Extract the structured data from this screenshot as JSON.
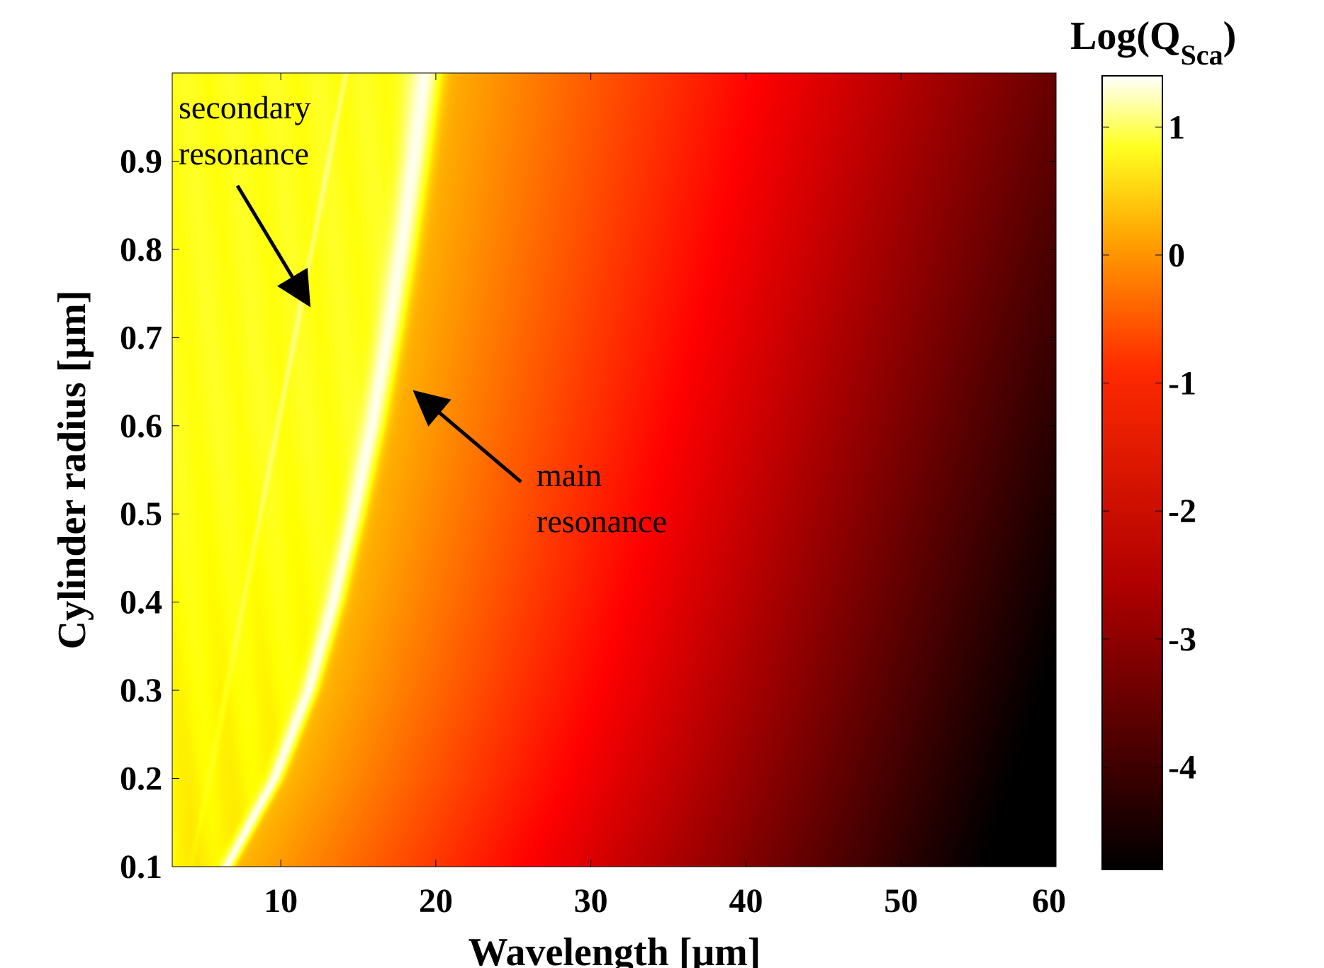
{
  "chart_data": {
    "type": "heatmap",
    "title": "",
    "xlabel": "Wavelength [μm]",
    "ylabel": "Cylinder radius [μm]",
    "xlim": [
      3,
      60
    ],
    "ylim": [
      0.1,
      1.0
    ],
    "xticks": [
      10,
      20,
      30,
      40,
      50,
      60
    ],
    "xtick_labels": [
      "10",
      "20",
      "30",
      "40",
      "50",
      "60"
    ],
    "yticks": [
      0.1,
      0.2,
      0.3,
      0.4,
      0.5,
      0.6,
      0.7,
      0.8,
      0.9
    ],
    "ytick_labels": [
      "0.1",
      "0.2",
      "0.3",
      "0.4",
      "0.5",
      "0.6",
      "0.7",
      "0.8",
      "0.9"
    ],
    "colormap": "hot",
    "colorbar": {
      "label_main": "Log(Q",
      "label_sub": "Sca",
      "label_end": ")",
      "range": [
        -4.8,
        1.4
      ],
      "ticks": [
        1,
        0,
        -1,
        -2,
        -3,
        -4
      ],
      "tick_labels": [
        "1",
        "0",
        "-1",
        "-2",
        "-3",
        "-4"
      ]
    },
    "main_resonance": {
      "radius": [
        0.1,
        0.2,
        0.3,
        0.4,
        0.5,
        0.6,
        0.7,
        0.8,
        0.9,
        1.0
      ],
      "wavelength": [
        6.5,
        9.6,
        11.8,
        13.4,
        14.7,
        15.9,
        16.9,
        17.8,
        18.6,
        19.3
      ],
      "peak_log_q": 1.3
    },
    "secondary_resonance": {
      "radius": [
        0.1,
        0.2,
        0.3,
        0.4,
        0.5,
        0.6,
        0.7,
        0.8,
        0.9,
        1.0
      ],
      "wavelength": [
        4.2,
        5.4,
        6.5,
        7.6,
        8.7,
        9.8,
        10.9,
        12.0,
        13.1,
        14.2
      ],
      "peak_log_q": 0.6
    },
    "annotations": [
      {
        "text_lines": [
          "secondary",
          "resonance"
        ],
        "color": "#000000",
        "arrow_to": {
          "wavelength": 12.0,
          "radius": 0.74
        }
      },
      {
        "text_lines": [
          "main",
          "resonance"
        ],
        "color": "#000000",
        "arrow_to": {
          "wavelength": 18.0,
          "radius": 0.65
        }
      }
    ]
  }
}
